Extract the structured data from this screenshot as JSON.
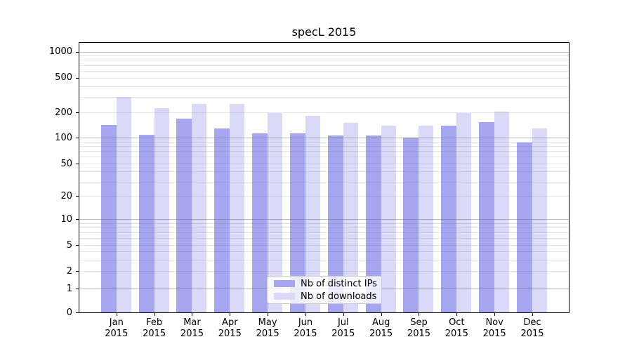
{
  "title": "specL 2015",
  "colors": {
    "ips": "#a5a5f0",
    "downloads": "#dadaf8",
    "grid_major": "rgba(90,90,90,0.42)",
    "grid_minor": "rgba(60,60,60,0.13)",
    "axis": "#000000",
    "legend_border": "#cccccc"
  },
  "legend": {
    "items": [
      {
        "label": "Nb of distinct IPs",
        "color_key": "ips"
      },
      {
        "label": "Nb of downloads",
        "color_key": "downloads"
      }
    ]
  },
  "y_axis": {
    "tick_values": [
      1000,
      500,
      200,
      100,
      50,
      20,
      10,
      5,
      2,
      1,
      0
    ]
  },
  "x_axis": {
    "year": "2015",
    "months": [
      "Jan",
      "Feb",
      "Mar",
      "Apr",
      "May",
      "Jun",
      "Jul",
      "Aug",
      "Sep",
      "Oct",
      "Nov",
      "Dec"
    ]
  },
  "chart_data": {
    "type": "bar",
    "title": "specL 2015",
    "categories": [
      "Jan 2015",
      "Feb 2015",
      "Mar 2015",
      "Apr 2015",
      "May 2015",
      "Jun 2015",
      "Jul 2015",
      "Aug 2015",
      "Sep 2015",
      "Oct 2015",
      "Nov 2015",
      "Dec 2015"
    ],
    "series": [
      {
        "name": "Nb of distinct IPs",
        "color": "#a5a5f0",
        "values": [
          142,
          107,
          168,
          128,
          112,
          112,
          105,
          106,
          100,
          140,
          152,
          88
        ]
      },
      {
        "name": "Nb of downloads",
        "color": "#dadaf8",
        "values": [
          300,
          225,
          250,
          248,
          198,
          183,
          151,
          140,
          140,
          198,
          205,
          129
        ]
      }
    ],
    "yscale": "symlog",
    "ylim": [
      0,
      1000
    ],
    "y_ticks": [
      0,
      1,
      2,
      5,
      10,
      20,
      50,
      100,
      200,
      500,
      1000
    ],
    "xlabel": "",
    "ylabel": "",
    "grid": true,
    "legend_position": "lower center"
  }
}
